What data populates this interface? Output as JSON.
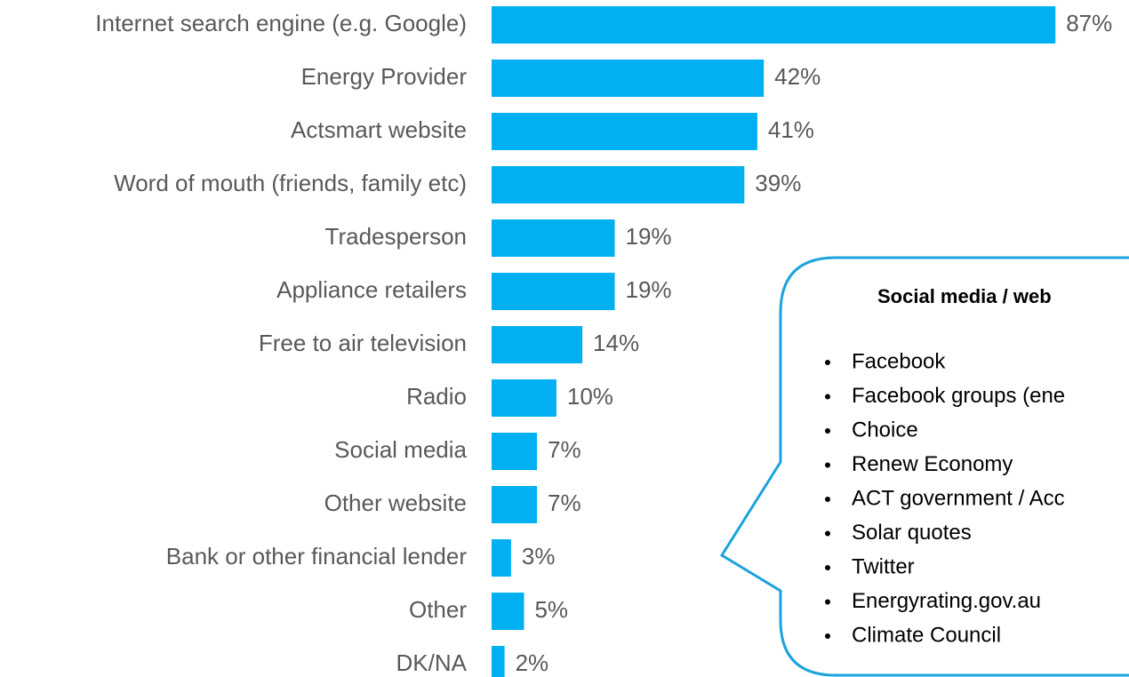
{
  "chart_data": {
    "type": "bar",
    "orientation": "horizontal",
    "color": "#00b0f0",
    "categories": [
      "Internet search engine (e.g. Google)",
      "Energy Provider",
      "Actsmart website",
      "Word of mouth (friends, family etc)",
      "Tradesperson",
      "Appliance retailers",
      "Free to air television",
      "Radio",
      "Social media",
      "Other website",
      "Bank or other financial lender",
      "Other",
      "DK/NA"
    ],
    "values": [
      87,
      42,
      41,
      39,
      19,
      19,
      14,
      10,
      7,
      7,
      3,
      5,
      2
    ],
    "value_labels": [
      "87%",
      "42%",
      "41%",
      "39%",
      "19%",
      "19%",
      "14%",
      "10%",
      "7%",
      "7%",
      "3%",
      "5%",
      "2%"
    ]
  },
  "callout": {
    "title": "Social media / web",
    "items": [
      "Facebook",
      "Facebook groups (ene",
      "Choice",
      "Renew Economy",
      "ACT government / Acc",
      "Solar quotes",
      "Twitter",
      "Energyrating.gov.au",
      "Climate Council"
    ]
  }
}
